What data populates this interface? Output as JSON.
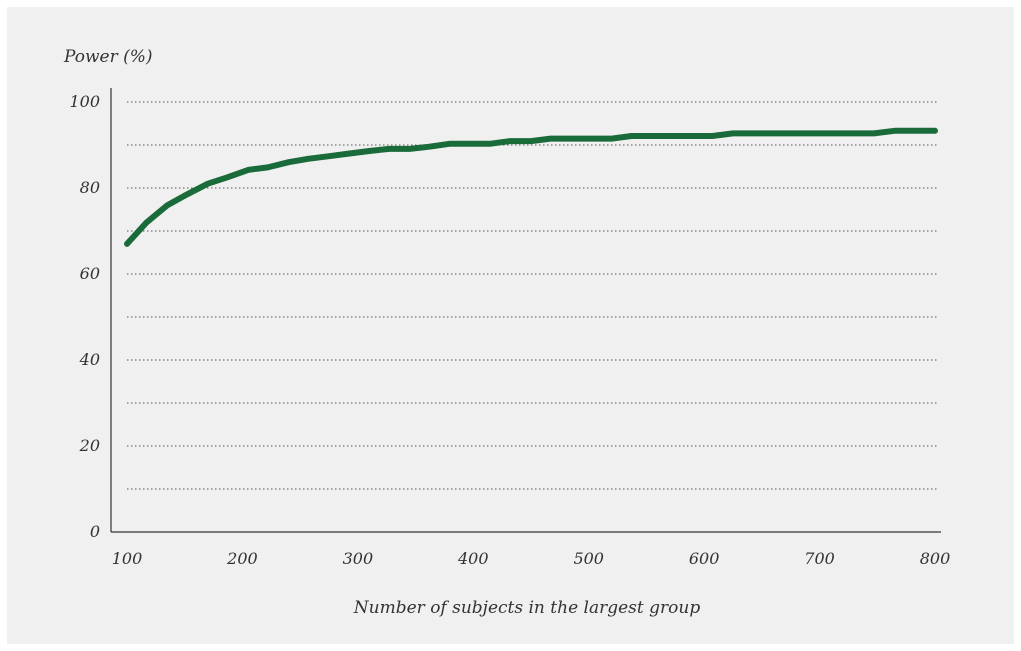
{
  "chart_data": {
    "type": "line",
    "ylabel": "Power (%)",
    "xlabel": "Number of subjects in the largest group",
    "xlim": [
      100,
      800
    ],
    "ylim": [
      0,
      100
    ],
    "x_ticks": [
      100,
      200,
      300,
      400,
      500,
      600,
      700,
      800
    ],
    "y_ticks": [
      0,
      20,
      40,
      60,
      80,
      100
    ],
    "y_gridlines": [
      10,
      20,
      30,
      40,
      50,
      60,
      70,
      80,
      90,
      100
    ],
    "grid": "dotted horizontal",
    "legend": "none",
    "series_color": "#1a6b3a",
    "series": [
      {
        "x": [
          100,
          117,
          135,
          152,
          170,
          187,
          205,
          222,
          240,
          257,
          275,
          292,
          310,
          327,
          345,
          362,
          380,
          397,
          415,
          432,
          450,
          467,
          485,
          502,
          520,
          537,
          555,
          572,
          590,
          607,
          625,
          642,
          660,
          677,
          695,
          712,
          730,
          747,
          765,
          782,
          800
        ],
        "y": [
          67,
          72,
          76,
          78.5,
          81,
          82.5,
          84.2,
          84.8,
          86,
          86.8,
          87.4,
          88,
          88.6,
          89.1,
          89.1,
          89.6,
          90.3,
          90.3,
          90.3,
          90.9,
          90.9,
          91.5,
          91.5,
          91.5,
          91.5,
          92.1,
          92.1,
          92.1,
          92.1,
          92.1,
          92.7,
          92.7,
          92.7,
          92.7,
          92.7,
          92.7,
          92.7,
          92.7,
          93.3,
          93.3,
          93.3
        ]
      }
    ]
  }
}
